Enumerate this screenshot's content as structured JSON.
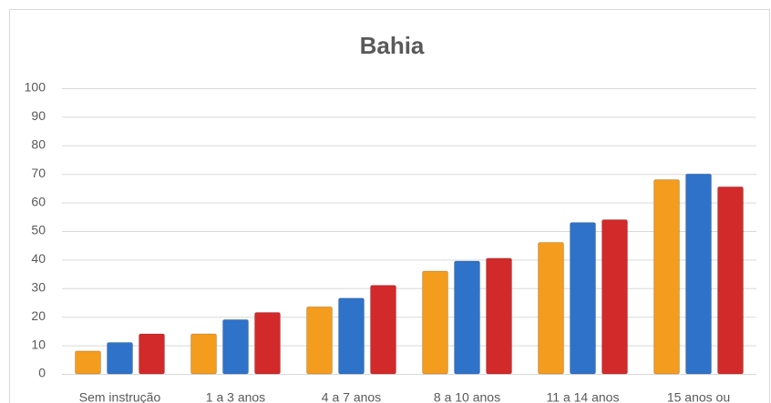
{
  "chart_data": {
    "type": "bar",
    "title": "Bahia",
    "categories": [
      "Sem instrução",
      "1 a 3 anos",
      "4 a 7 anos",
      "8 a 10 anos",
      "11 a 14 anos",
      "15 anos ou"
    ],
    "series": [
      {
        "color": "#f39c1e",
        "values": [
          8,
          14,
          23.5,
          36,
          46,
          68
        ]
      },
      {
        "color": "#2f72c9",
        "values": [
          11,
          19,
          26.5,
          39.5,
          53,
          70
        ]
      },
      {
        "color": "#d22a2a",
        "values": [
          14,
          21.5,
          31,
          40.5,
          54,
          65.5
        ]
      }
    ],
    "ylim": [
      0,
      100
    ],
    "yticks": [
      0,
      10,
      20,
      30,
      40,
      50,
      60,
      70,
      80,
      90,
      100
    ],
    "grid": true
  }
}
